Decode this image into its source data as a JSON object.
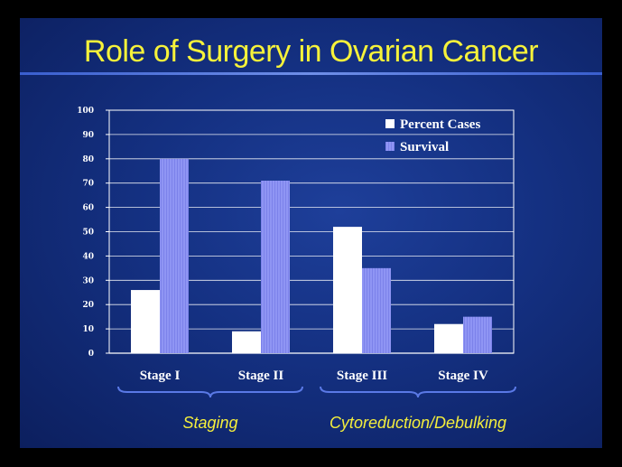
{
  "slide": {
    "title": "Role of Surgery in Ovarian Cancer"
  },
  "colors": {
    "percent_cases": "#ffffff",
    "survival": "#8f95f4",
    "title": "#f6f23a",
    "group_label": "#f4ee3c"
  },
  "chart_data": {
    "type": "bar",
    "categories": [
      "Stage I",
      "Stage II",
      "Stage III",
      "Stage IV"
    ],
    "series": [
      {
        "name": "Percent Cases",
        "values": [
          26,
          9,
          52,
          12
        ]
      },
      {
        "name": "Survival",
        "values": [
          80,
          71,
          35,
          15
        ]
      }
    ],
    "ylim": [
      0,
      100
    ],
    "yticks": [
      0,
      10,
      20,
      30,
      40,
      50,
      60,
      70,
      80,
      90,
      100
    ],
    "grid": true,
    "legend_position": "top-right",
    "groups": [
      {
        "label": "Staging",
        "categories": [
          "Stage I",
          "Stage II"
        ]
      },
      {
        "label": "Cytoreduction/Debulking",
        "categories": [
          "Stage III",
          "Stage IV"
        ]
      }
    ]
  }
}
